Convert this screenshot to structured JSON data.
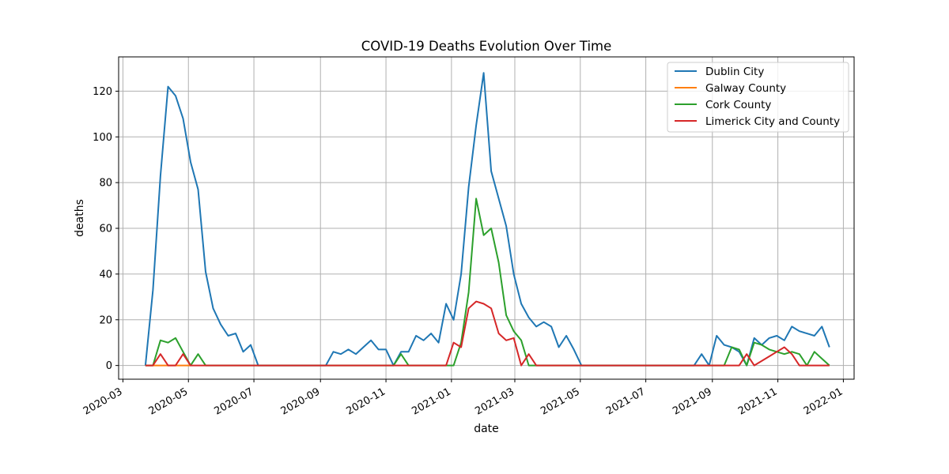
{
  "chart_data": {
    "type": "line",
    "title": "COVID-19 Deaths Evolution Over Time",
    "xlabel": "date",
    "ylabel": "deaths",
    "x_axis_type": "date",
    "xlim": [
      "2020-02-26",
      "2022-01-11"
    ],
    "ylim": [
      -6,
      135
    ],
    "x_ticks": [
      "2020-03-01",
      "2020-05-01",
      "2020-07-01",
      "2020-09-01",
      "2020-11-01",
      "2021-01-01",
      "2021-03-01",
      "2021-05-01",
      "2021-07-01",
      "2021-09-01",
      "2021-11-01",
      "2022-01-01"
    ],
    "x_tick_labels": [
      "2020-03",
      "2020-05",
      "2020-07",
      "2020-09",
      "2020-11",
      "2021-01",
      "2021-03",
      "2021-05",
      "2021-07",
      "2021-09",
      "2021-11",
      "2022-01"
    ],
    "y_ticks": [
      0,
      20,
      40,
      60,
      80,
      100,
      120
    ],
    "grid": true,
    "legend_position": "top-right",
    "series": [
      {
        "name": "Dublin City",
        "color": "#1f77b4",
        "points": [
          [
            "2020-03-22",
            0
          ],
          [
            "2020-03-29",
            33
          ],
          [
            "2020-04-05",
            83
          ],
          [
            "2020-04-12",
            122
          ],
          [
            "2020-04-19",
            118
          ],
          [
            "2020-04-26",
            108
          ],
          [
            "2020-05-03",
            89
          ],
          [
            "2020-05-10",
            77
          ],
          [
            "2020-05-17",
            41
          ],
          [
            "2020-05-24",
            25
          ],
          [
            "2020-05-31",
            18
          ],
          [
            "2020-06-07",
            13
          ],
          [
            "2020-06-14",
            14
          ],
          [
            "2020-06-21",
            6
          ],
          [
            "2020-06-28",
            9
          ],
          [
            "2020-07-05",
            0
          ],
          [
            "2020-09-06",
            0
          ],
          [
            "2020-09-13",
            6
          ],
          [
            "2020-09-20",
            5
          ],
          [
            "2020-09-27",
            7
          ],
          [
            "2020-10-04",
            5
          ],
          [
            "2020-10-11",
            8
          ],
          [
            "2020-10-18",
            11
          ],
          [
            "2020-10-25",
            7
          ],
          [
            "2020-11-01",
            7
          ],
          [
            "2020-11-08",
            0
          ],
          [
            "2020-11-15",
            6
          ],
          [
            "2020-11-22",
            6
          ],
          [
            "2020-11-29",
            13
          ],
          [
            "2020-12-06",
            11
          ],
          [
            "2020-12-13",
            14
          ],
          [
            "2020-12-20",
            10
          ],
          [
            "2020-12-27",
            27
          ],
          [
            "2021-01-03",
            20
          ],
          [
            "2021-01-10",
            40
          ],
          [
            "2021-01-17",
            78
          ],
          [
            "2021-01-24",
            105
          ],
          [
            "2021-01-31",
            128
          ],
          [
            "2021-02-07",
            85
          ],
          [
            "2021-02-14",
            73
          ],
          [
            "2021-02-21",
            61
          ],
          [
            "2021-02-28",
            40
          ],
          [
            "2021-03-07",
            27
          ],
          [
            "2021-03-14",
            21
          ],
          [
            "2021-03-21",
            17
          ],
          [
            "2021-03-28",
            19
          ],
          [
            "2021-04-04",
            17
          ],
          [
            "2021-04-11",
            8
          ],
          [
            "2021-04-18",
            13
          ],
          [
            "2021-04-25",
            7
          ],
          [
            "2021-05-02",
            0
          ],
          [
            "2021-08-15",
            0
          ],
          [
            "2021-08-22",
            5
          ],
          [
            "2021-08-29",
            0
          ],
          [
            "2021-09-05",
            13
          ],
          [
            "2021-09-12",
            9
          ],
          [
            "2021-09-19",
            8
          ],
          [
            "2021-09-26",
            6
          ],
          [
            "2021-10-03",
            0
          ],
          [
            "2021-10-10",
            12
          ],
          [
            "2021-10-17",
            9
          ],
          [
            "2021-10-24",
            12
          ],
          [
            "2021-10-31",
            13
          ],
          [
            "2021-11-07",
            11
          ],
          [
            "2021-11-14",
            17
          ],
          [
            "2021-11-21",
            15
          ],
          [
            "2021-11-28",
            14
          ],
          [
            "2021-12-05",
            13
          ],
          [
            "2021-12-12",
            17
          ],
          [
            "2021-12-19",
            8
          ]
        ]
      },
      {
        "name": "Galway County",
        "color": "#ff7f0e",
        "points": [
          [
            "2020-03-22",
            0
          ],
          [
            "2020-03-29",
            0
          ],
          [
            "2020-04-05",
            0
          ],
          [
            "2020-04-12",
            0
          ],
          [
            "2020-04-19",
            0
          ],
          [
            "2020-04-26",
            0
          ],
          [
            "2020-05-03",
            0
          ]
        ]
      },
      {
        "name": "Cork County",
        "color": "#2ca02c",
        "points": [
          [
            "2020-03-22",
            0
          ],
          [
            "2020-03-29",
            0
          ],
          [
            "2020-04-05",
            11
          ],
          [
            "2020-04-12",
            10
          ],
          [
            "2020-04-19",
            12
          ],
          [
            "2020-04-26",
            6
          ],
          [
            "2020-05-03",
            0
          ],
          [
            "2020-05-10",
            5
          ],
          [
            "2020-05-17",
            0
          ],
          [
            "2020-11-01",
            0
          ],
          [
            "2020-11-08",
            0
          ],
          [
            "2020-11-15",
            5
          ],
          [
            "2020-11-22",
            0
          ],
          [
            "2021-01-03",
            0
          ],
          [
            "2021-01-10",
            10
          ],
          [
            "2021-01-17",
            32
          ],
          [
            "2021-01-24",
            73
          ],
          [
            "2021-01-31",
            57
          ],
          [
            "2021-02-07",
            60
          ],
          [
            "2021-02-14",
            45
          ],
          [
            "2021-02-21",
            22
          ],
          [
            "2021-02-28",
            15
          ],
          [
            "2021-03-07",
            11
          ],
          [
            "2021-03-14",
            0
          ],
          [
            "2021-09-12",
            0
          ],
          [
            "2021-09-19",
            8
          ],
          [
            "2021-09-26",
            7
          ],
          [
            "2021-10-03",
            0
          ],
          [
            "2021-10-10",
            10
          ],
          [
            "2021-10-17",
            9
          ],
          [
            "2021-10-24",
            7
          ],
          [
            "2021-10-31",
            6
          ],
          [
            "2021-11-07",
            5
          ],
          [
            "2021-11-14",
            6
          ],
          [
            "2021-11-21",
            5
          ],
          [
            "2021-11-28",
            0
          ],
          [
            "2021-12-05",
            6
          ],
          [
            "2021-12-12",
            3
          ],
          [
            "2021-12-19",
            0
          ]
        ]
      },
      {
        "name": "Limerick City and County",
        "color": "#d62728",
        "points": [
          [
            "2020-03-22",
            0
          ],
          [
            "2020-03-29",
            0
          ],
          [
            "2020-04-05",
            5
          ],
          [
            "2020-04-12",
            0
          ],
          [
            "2020-04-19",
            0
          ],
          [
            "2020-04-26",
            5
          ],
          [
            "2020-05-03",
            0
          ],
          [
            "2020-12-27",
            0
          ],
          [
            "2021-01-03",
            10
          ],
          [
            "2021-01-10",
            8
          ],
          [
            "2021-01-17",
            25
          ],
          [
            "2021-01-24",
            28
          ],
          [
            "2021-01-31",
            27
          ],
          [
            "2021-02-07",
            25
          ],
          [
            "2021-02-14",
            14
          ],
          [
            "2021-02-21",
            11
          ],
          [
            "2021-02-28",
            12
          ],
          [
            "2021-03-07",
            0
          ],
          [
            "2021-03-14",
            5
          ],
          [
            "2021-03-21",
            0
          ],
          [
            "2021-09-26",
            0
          ],
          [
            "2021-10-03",
            5
          ],
          [
            "2021-10-10",
            0
          ],
          [
            "2021-10-17",
            2
          ],
          [
            "2021-10-24",
            4
          ],
          [
            "2021-10-31",
            6
          ],
          [
            "2021-11-07",
            8
          ],
          [
            "2021-11-14",
            5
          ],
          [
            "2021-11-21",
            0
          ],
          [
            "2021-12-19",
            0
          ]
        ]
      }
    ]
  }
}
